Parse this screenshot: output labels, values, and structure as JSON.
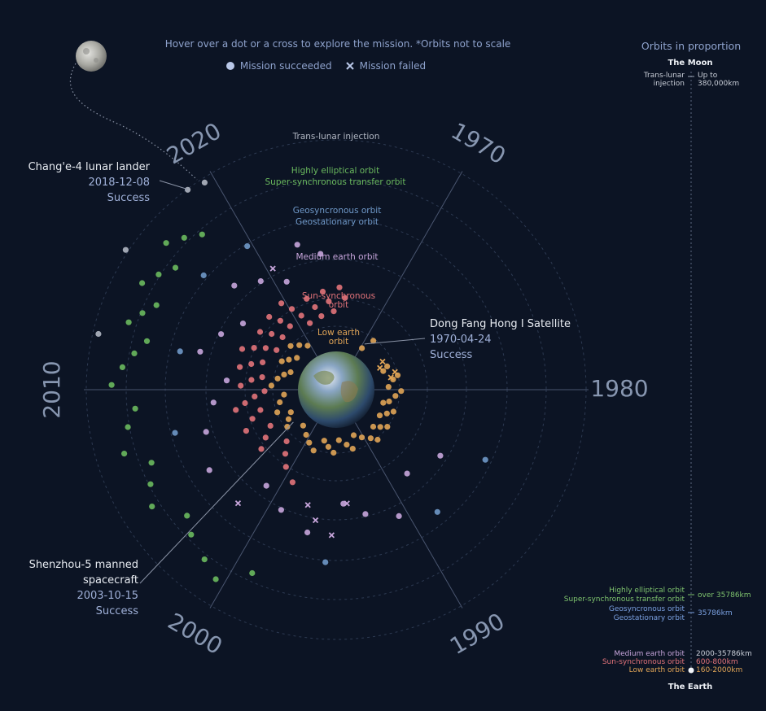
{
  "header": {
    "hint": "Hover over a dot or a cross to explore the mission. *Orbits not to scale",
    "legend_success": "Mission succeeded",
    "legend_failed": "Mission failed"
  },
  "colors": {
    "background": "#0c1424",
    "leo": "#e0a456",
    "sso": "#e2737a",
    "meo": "#c7a5db",
    "geo": "#6f98c8",
    "heo": "#6ab95e",
    "tli": "#b0b6c2",
    "axis_text": "#8796b0"
  },
  "annotations": {
    "change4": {
      "title": "Chang'e-4  lunar lander",
      "date": "2018-12-08",
      "status": "Success"
    },
    "dfh1": {
      "title": "Dong Fang Hong I Satellite",
      "date": "1970-04-24",
      "status": "Success"
    },
    "shenzhou5": {
      "title_line1": "Shenzhou-5 manned",
      "title_line2": "spacecraft",
      "date": "2003-10-15",
      "status": "Success"
    }
  },
  "side_panel": {
    "title": "Orbits in proportion",
    "moon": "The Moon",
    "earth": "The Earth",
    "tli_label_1": "Trans-lunar",
    "tli_label_2": "injection",
    "tli_dist_1": "Up to",
    "tli_dist_2": "380,000km",
    "heo_label": "Highly elliptical orbit",
    "sstrans_label": "Super-synchronous transfer orbit",
    "heo_dist": "over 35786km",
    "geosync_label": "Geosyncronous orbit",
    "geostat_label": "Geostationary orbit",
    "geo_dist": "35786km",
    "meo_label": "Medium earth orbit",
    "meo_dist": "2000-35786km",
    "sso_label": "Sun-synchronous orbit",
    "sso_dist": "600-800km",
    "leo_label": "Low earth orbit",
    "leo_dist": "160-2000km"
  },
  "chart_data": {
    "type": "scatter",
    "subtype": "radial timeline",
    "angular_axis": "year (clockwise from 1970 at top-right)",
    "radial_axis": "orbit type",
    "year_ticks": [
      "1970",
      "1980",
      "1990",
      "2000",
      "2010",
      "2020"
    ],
    "orbit_rings": [
      {
        "key": "leo",
        "label_1": "Low earth",
        "label_2": "orbit"
      },
      {
        "key": "sso",
        "label_1": "Sun-synchronous",
        "label_2": "orbit"
      },
      {
        "key": "meo",
        "label_1": "Medium earth orbit",
        "label_2": ""
      },
      {
        "key": "geo",
        "label_1": "Geosyncronous orbit",
        "label_2": "Geostationary orbit"
      },
      {
        "key": "heo",
        "label_1": "Highly elliptical orbit",
        "label_2": "Super-synchronous transfer orbit"
      },
      {
        "key": "tli",
        "label_1": "Trans-lunar injection",
        "label_2": ""
      }
    ],
    "series": [
      {
        "name": "Mission succeeded",
        "points": [
          [
            "leo",
            1970.3
          ],
          [
            "leo",
            1971.2
          ],
          [
            "leo",
            1975.9
          ],
          [
            "leo",
            1976.4
          ],
          [
            "leo",
            1977.8
          ],
          [
            "leo",
            1978.3
          ],
          [
            "leo",
            1979.5
          ],
          [
            "leo",
            1980.2
          ],
          [
            "leo",
            1981.0
          ],
          [
            "leo",
            1982.1
          ],
          [
            "leo",
            1982.6
          ],
          [
            "leo",
            1983.5
          ],
          [
            "leo",
            1984.2
          ],
          [
            "leo",
            1985.1
          ],
          [
            "leo",
            1986.0
          ],
          [
            "leo",
            1986.7
          ],
          [
            "leo",
            1987.5
          ],
          [
            "leo",
            1988.4
          ],
          [
            "leo",
            1989.1
          ],
          [
            "leo",
            1990.3
          ],
          [
            "leo",
            1991.5
          ],
          [
            "leo",
            1992.4
          ],
          [
            "leo",
            1993.2
          ],
          [
            "leo",
            1994.5
          ],
          [
            "leo",
            1995.4
          ],
          [
            "leo",
            1996.3
          ],
          [
            "leo",
            1997.2
          ],
          [
            "leo",
            1998.4
          ],
          [
            "leo",
            1999.5
          ],
          [
            "leo",
            2000.6
          ],
          [
            "leo",
            2002.1
          ],
          [
            "leo",
            2003.8
          ],
          [
            "leo",
            2004.7
          ],
          [
            "leo",
            2005.6
          ],
          [
            "leo",
            2006.5
          ],
          [
            "leo",
            2007.9
          ],
          [
            "leo",
            2009.1
          ],
          [
            "leo",
            2010.6
          ],
          [
            "leo",
            2011.8
          ],
          [
            "leo",
            2012.7
          ],
          [
            "leo",
            2013.5
          ],
          [
            "leo",
            2014.6
          ],
          [
            "leo",
            2015.4
          ],
          [
            "leo",
            2016.5
          ],
          [
            "leo",
            2017.3
          ],
          [
            "leo",
            2018.4
          ],
          [
            "leo",
            2019.5
          ],
          [
            "sso",
            1999.2
          ],
          [
            "sso",
            2000.5
          ],
          [
            "sso",
            2001.4
          ],
          [
            "sso",
            2002.3
          ],
          [
            "sso",
            2003.6
          ],
          [
            "sso",
            2004.3
          ],
          [
            "sso",
            2005.2
          ],
          [
            "sso",
            2005.9
          ],
          [
            "sso",
            2006.8
          ],
          [
            "sso",
            2007.5
          ],
          [
            "sso",
            2008.1
          ],
          [
            "sso",
            2008.6
          ],
          [
            "sso",
            2009.2
          ],
          [
            "sso",
            2009.8
          ],
          [
            "sso",
            2010.4
          ],
          [
            "sso",
            2011.1
          ],
          [
            "sso",
            2011.6
          ],
          [
            "sso",
            2012.2
          ],
          [
            "sso",
            2012.8
          ],
          [
            "sso",
            2013.4
          ],
          [
            "sso",
            2013.9
          ],
          [
            "sso",
            2014.5
          ],
          [
            "sso",
            2015.1
          ],
          [
            "sso",
            2015.6
          ],
          [
            "sso",
            2016.2
          ],
          [
            "sso",
            2016.8
          ],
          [
            "sso",
            2017.4
          ],
          [
            "sso",
            2017.9
          ],
          [
            "sso",
            2018.5
          ],
          [
            "sso",
            2019.0
          ],
          [
            "sso",
            2019.6
          ],
          [
            "sso",
            2020.2
          ],
          [
            "sso",
            2020.8
          ],
          [
            "sso",
            2021.4
          ],
          [
            "sso",
            2022.0
          ],
          [
            "sso",
            2022.6
          ],
          [
            "sso",
            2023.1
          ],
          [
            "sso",
            2023.7
          ],
          [
            "sso",
            2024.2
          ],
          [
            "sso",
            2024.7
          ],
          [
            "sso",
            2025.3
          ],
          [
            "sso",
            2025.9
          ],
          [
            "meo",
            1985.4
          ],
          [
            "meo",
            1988.3
          ],
          [
            "meo",
            1990.6
          ],
          [
            "meo",
            1992.8
          ],
          [
            "meo",
            1994.4
          ],
          [
            "meo",
            1996.9
          ],
          [
            "meo",
            1999.1
          ],
          [
            "meo",
            2001.0
          ],
          [
            "meo",
            2004.6
          ],
          [
            "meo",
            2007.0
          ],
          [
            "meo",
            2009.0
          ],
          [
            "meo",
            2010.8
          ],
          [
            "meo",
            2012.6
          ],
          [
            "meo",
            2014.3
          ],
          [
            "meo",
            2015.9
          ],
          [
            "meo",
            2017.6
          ],
          [
            "meo",
            2019.2
          ],
          [
            "meo",
            2020.9
          ],
          [
            "meo",
            2022.5
          ],
          [
            "meo",
            2023.9
          ],
          [
            "geo",
            1984.2
          ],
          [
            "geo",
            1988.4
          ],
          [
            "geo",
            1995.6
          ],
          [
            "geo",
            2007.5
          ],
          [
            "geo",
            2012.3
          ],
          [
            "geo",
            2016.8
          ],
          [
            "geo",
            2019.7
          ],
          [
            "heo",
            1999.1
          ],
          [
            "heo",
            2000.4
          ],
          [
            "heo",
            2001.3
          ],
          [
            "heo",
            2002.5
          ],
          [
            "heo",
            2003.3
          ],
          [
            "heo",
            2004.6
          ],
          [
            "heo",
            2005.5
          ],
          [
            "heo",
            2006.4
          ],
          [
            "heo",
            2007.2
          ],
          [
            "heo",
            2008.3
          ],
          [
            "heo",
            2009.1
          ],
          [
            "heo",
            2010.2
          ],
          [
            "heo",
            2011.0
          ],
          [
            "heo",
            2011.7
          ],
          [
            "heo",
            2012.4
          ],
          [
            "heo",
            2013.0
          ],
          [
            "heo",
            2013.6
          ],
          [
            "heo",
            2014.2
          ],
          [
            "heo",
            2014.8
          ],
          [
            "heo",
            2015.5
          ],
          [
            "heo",
            2016.2
          ],
          [
            "heo",
            2016.8
          ],
          [
            "heo",
            2017.5
          ],
          [
            "heo",
            2018.2
          ],
          [
            "tli",
            2012.2
          ],
          [
            "tli",
            2015.6
          ],
          [
            "tli",
            2018.9
          ],
          [
            "tli",
            2019.6
          ]
        ]
      },
      {
        "name": "Mission failed",
        "points": [
          [
            "leo",
            1974.8
          ],
          [
            "leo",
            1975.6
          ],
          [
            "leo",
            1977.2
          ],
          [
            "leo",
            1977.9
          ],
          [
            "meo",
            1994.1
          ],
          [
            "meo",
            1995.3
          ],
          [
            "meo",
            1996.5
          ],
          [
            "meo",
            1997.3
          ],
          [
            "meo",
            2001.8
          ],
          [
            "meo",
            2020.4
          ]
        ]
      }
    ],
    "highlighted": [
      {
        "key": "change4",
        "orbit": "tli",
        "year": 2018.9
      },
      {
        "key": "dfh1",
        "orbit": "leo",
        "year": 1970.3
      },
      {
        "key": "shenzhou5",
        "orbit": "leo",
        "year": 2003.8
      }
    ]
  }
}
